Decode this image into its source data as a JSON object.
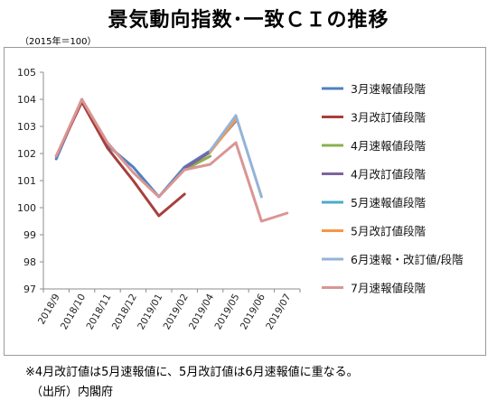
{
  "title": "景気動向指数･一致ＣＩの推移",
  "unit": "（2015年＝100）",
  "note": "※4月改訂値は5月速報値に、5月改訂値は6月速報値に重なる。",
  "source": "（出所）内閣府",
  "chart_data": {
    "type": "line",
    "categories": [
      "2018/9",
      "2018/10",
      "2018/11",
      "2018/12",
      "2019/01",
      "2019/02",
      "2019/04",
      "2019/05",
      "2019/06",
      "2019/07"
    ],
    "ylim": [
      97,
      105
    ],
    "yticks": [
      97,
      98,
      99,
      100,
      101,
      102,
      103,
      104,
      105
    ],
    "grid": false,
    "legend_position": "right",
    "series": [
      {
        "name": "3月速報値段階",
        "color": "#4f81bd",
        "points": [
          [
            0,
            101.8
          ],
          [
            1,
            104.0
          ],
          [
            2,
            102.3
          ],
          [
            3,
            101.5
          ],
          [
            4,
            100.4
          ],
          [
            5,
            101.5
          ],
          [
            6,
            102.1
          ],
          [
            7,
            103.2
          ]
        ]
      },
      {
        "name": "3月改訂値段階",
        "color": "#a6403d",
        "points": [
          [
            0,
            101.9
          ],
          [
            1,
            103.9
          ],
          [
            2,
            102.2
          ],
          [
            3,
            101.0
          ],
          [
            4,
            99.7
          ],
          [
            5,
            100.5
          ]
        ]
      },
      {
        "name": "4月速報値段階",
        "color": "#8cb04e",
        "points": [
          [
            5,
            101.4
          ],
          [
            6,
            101.9
          ]
        ]
      },
      {
        "name": "4月改訂値段階",
        "color": "#7e649e",
        "points": [
          [
            5,
            101.45
          ],
          [
            6,
            102.05
          ]
        ]
      },
      {
        "name": "5月速報値段階",
        "color": "#4bacc6",
        "points": [
          [
            6,
            102.1
          ],
          [
            7,
            103.3
          ]
        ]
      },
      {
        "name": "5月改訂値段階",
        "color": "#f79646",
        "points": [
          [
            6,
            102.05
          ],
          [
            7,
            103.25
          ]
        ]
      },
      {
        "name": "6月速報・改訂値/段階",
        "color": "#95b3d7",
        "points": [
          [
            6,
            102.1
          ],
          [
            7,
            103.4
          ],
          [
            8,
            100.4
          ]
        ]
      },
      {
        "name": "7月速報値段階",
        "color": "#d99694",
        "points": [
          [
            0,
            101.9
          ],
          [
            1,
            104.0
          ],
          [
            2,
            102.4
          ],
          [
            3,
            101.3
          ],
          [
            4,
            100.4
          ],
          [
            5,
            101.4
          ],
          [
            6,
            101.6
          ],
          [
            7,
            102.4
          ],
          [
            8,
            99.5
          ],
          [
            9,
            99.8
          ]
        ]
      }
    ]
  }
}
